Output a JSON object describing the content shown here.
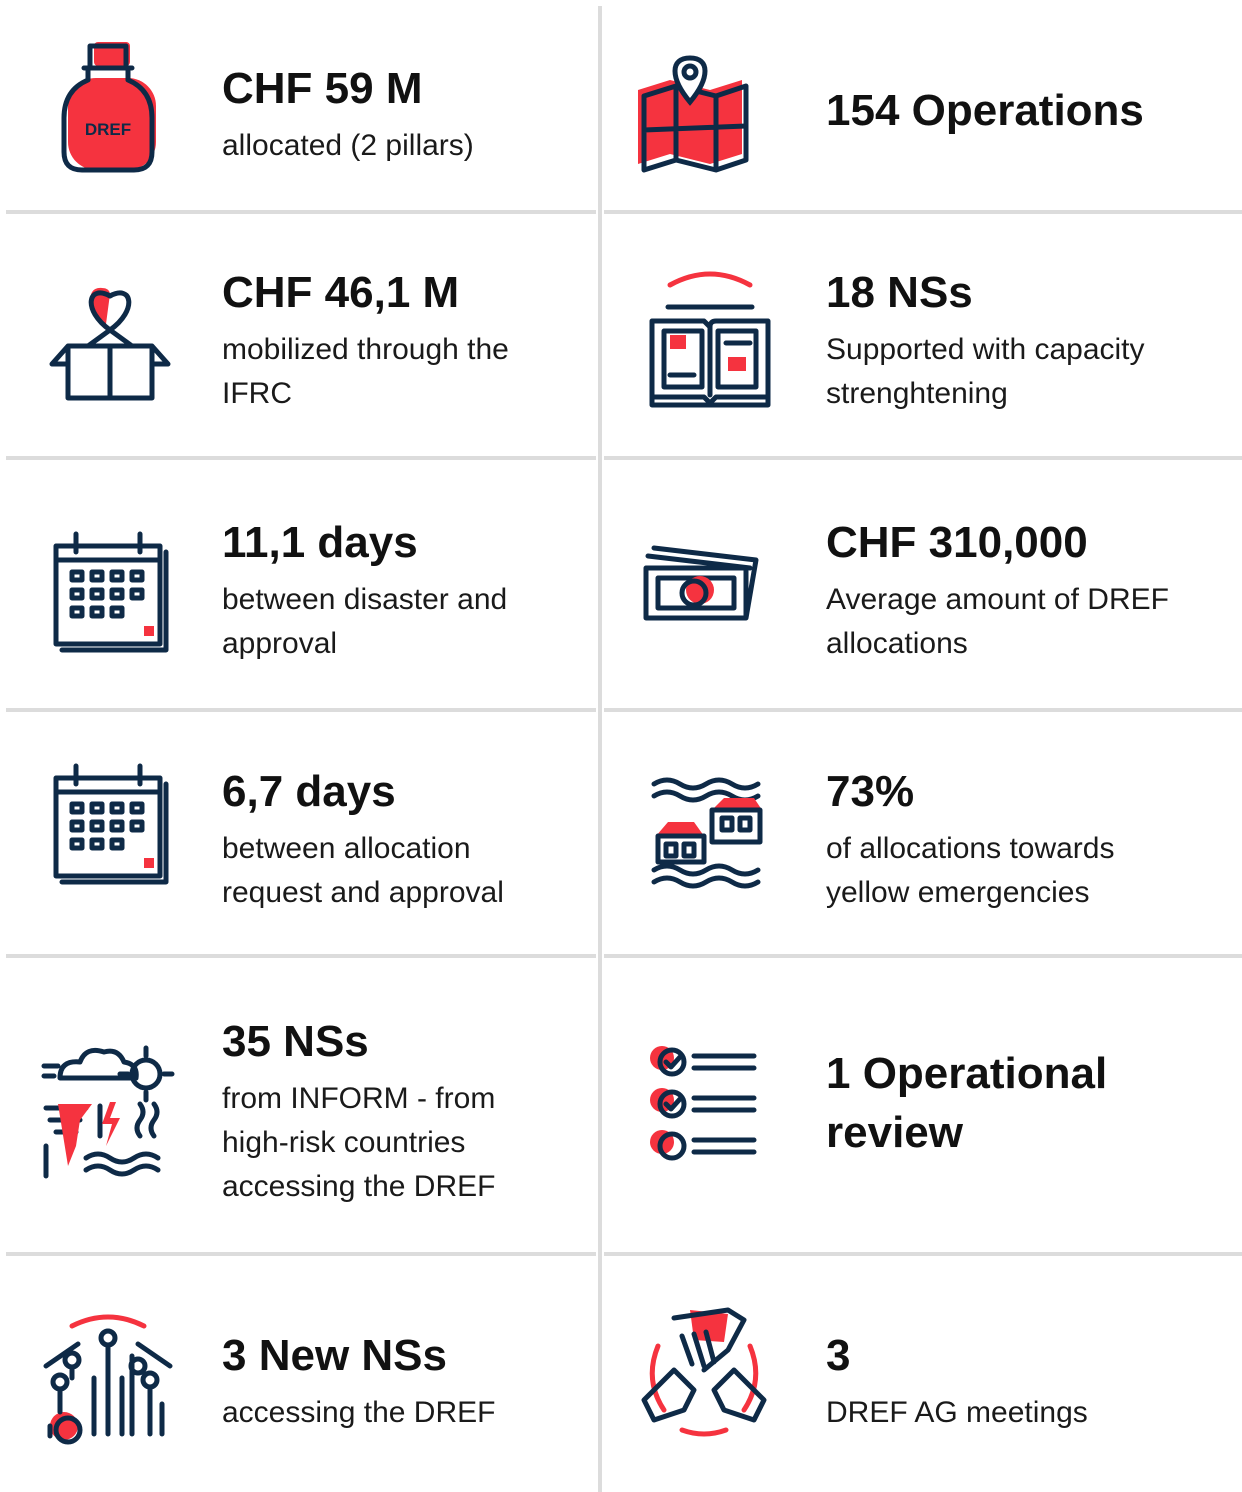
{
  "cells": [
    {
      "title": [
        "CHF 59 M"
      ],
      "lines": [
        "allocated (2 pillars)"
      ],
      "icon_text": "DREF"
    },
    {
      "title": [
        "154 Operations"
      ],
      "lines": []
    },
    {
      "title": [
        "CHF 46,1 M"
      ],
      "lines": [
        "mobilized through the",
        "IFRC"
      ]
    },
    {
      "title": [
        "18 NSs"
      ],
      "lines": [
        "Supported with capacity",
        "strenghtening"
      ]
    },
    {
      "title": [
        "11,1 days"
      ],
      "lines": [
        "between disaster and",
        "approval"
      ]
    },
    {
      "title": [
        "CHF 310,000"
      ],
      "lines": [
        "Average amount of DREF",
        "allocations"
      ]
    },
    {
      "title": [
        "6,7 days"
      ],
      "lines": [
        "between allocation",
        "request and approval"
      ]
    },
    {
      "title": [
        "73%"
      ],
      "lines": [
        "of allocations towards",
        "yellow emergencies"
      ]
    },
    {
      "title": [
        "35 NSs"
      ],
      "lines": [
        "from INFORM - from",
        "high-risk countries",
        "accessing the DREF"
      ]
    },
    {
      "title": [
        "1 Operational",
        "review"
      ],
      "lines": []
    },
    {
      "title": [
        "3 New NSs"
      ],
      "lines": [
        "accessing the DREF"
      ]
    },
    {
      "title": [
        "3"
      ],
      "lines": [
        "DREF AG meetings"
      ]
    }
  ]
}
